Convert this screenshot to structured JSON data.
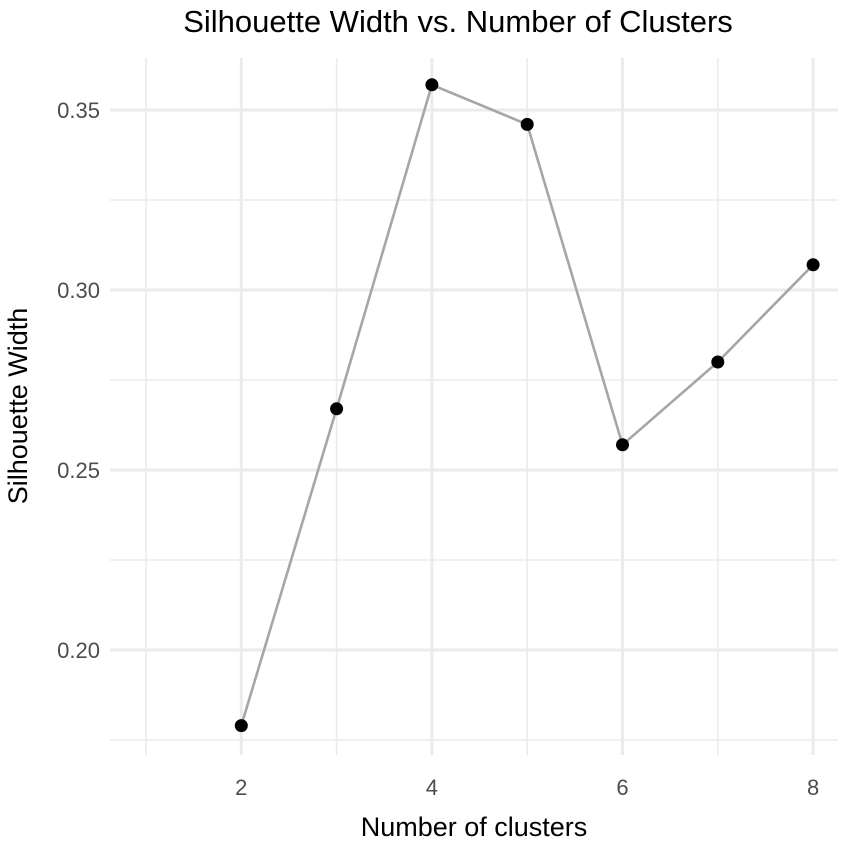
{
  "chart_data": {
    "type": "line",
    "title": "Silhouette Width vs. Number of Clusters",
    "xlabel": "Number of clusters",
    "ylabel": "Silhouette Width",
    "x": [
      2,
      3,
      4,
      5,
      6,
      7,
      8
    ],
    "series": [
      {
        "values": [
          0.179,
          0.267,
          0.357,
          0.346,
          0.257,
          0.28,
          0.307
        ]
      }
    ],
    "xlim": [
      1,
      8
    ],
    "ylim": [
      0.175,
      0.36
    ],
    "x_ticks": [
      2,
      4,
      6,
      8
    ],
    "y_ticks": [
      0.2,
      0.25,
      0.3,
      0.35
    ],
    "x_tick_labels": [
      "2",
      "4",
      "6",
      "8"
    ],
    "y_tick_labels": [
      "0.20",
      "0.25",
      "0.30",
      "0.35"
    ],
    "grid": true,
    "legend": "none",
    "colors": {
      "line": "#a6a6a6",
      "point": "#000000",
      "grid": "#ebebeb",
      "tick_text": "#4d4d4d"
    }
  }
}
